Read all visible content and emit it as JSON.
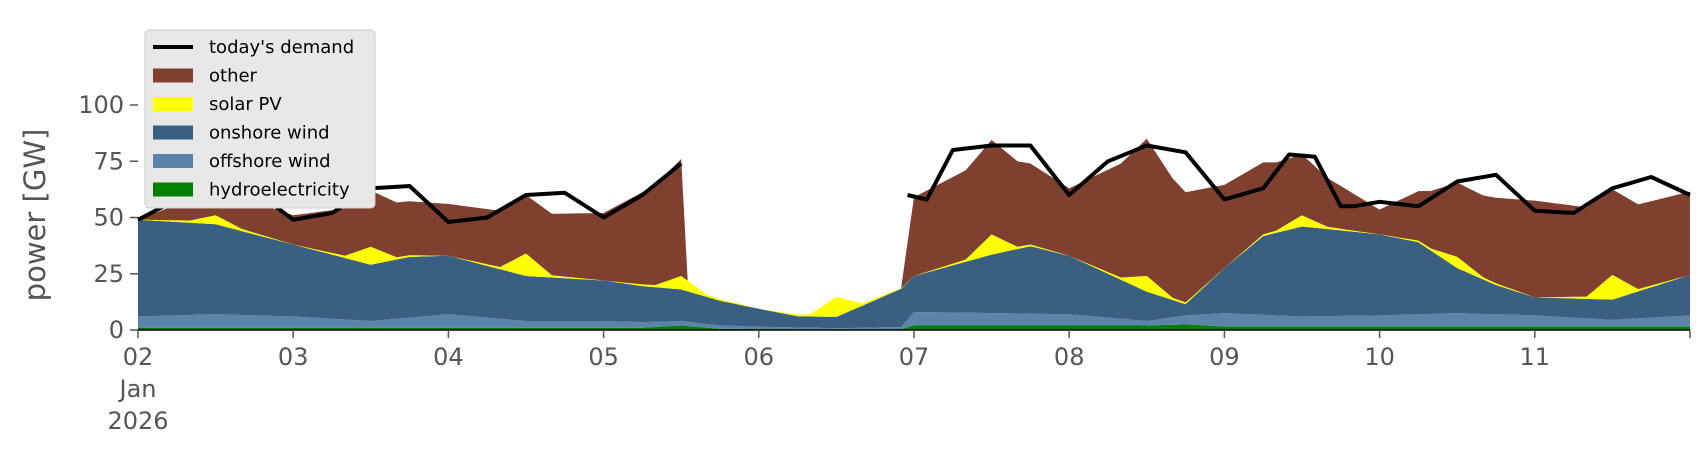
{
  "chart_data": {
    "type": "area",
    "ylabel": "power [GW]",
    "ylim": [
      0,
      120
    ],
    "y_ticks": [
      0,
      25,
      50,
      75,
      100
    ],
    "x_range_days": [
      "2026-01-02",
      "2026-01-12"
    ],
    "x_ticks": [
      {
        "date": "2026-01-02",
        "lines": [
          "02",
          "Jan",
          "2026"
        ]
      },
      {
        "date": "2026-01-03",
        "lines": [
          "03"
        ]
      },
      {
        "date": "2026-01-04",
        "lines": [
          "04"
        ]
      },
      {
        "date": "2026-01-05",
        "lines": [
          "05"
        ]
      },
      {
        "date": "2026-01-06",
        "lines": [
          "06"
        ]
      },
      {
        "date": "2026-01-07",
        "lines": [
          "07"
        ]
      },
      {
        "date": "2026-01-08",
        "lines": [
          "08"
        ]
      },
      {
        "date": "2026-01-09",
        "lines": [
          "09"
        ]
      },
      {
        "date": "2026-01-10",
        "lines": [
          "10"
        ]
      },
      {
        "date": "2026-01-11",
        "lines": [
          "11"
        ]
      }
    ],
    "grid": false,
    "legend_position": "top-left",
    "legend": [
      {
        "label": "today's demand",
        "kind": "line",
        "color": "#000000"
      },
      {
        "label": "other",
        "kind": "patch",
        "color": "#7f4030"
      },
      {
        "label": "solar PV",
        "kind": "patch",
        "color": "#ffff00"
      },
      {
        "label": "onshore wind",
        "kind": "patch",
        "color": "#3a6081"
      },
      {
        "label": "offshore wind",
        "kind": "patch",
        "color": "#5b84a8"
      },
      {
        "label": "hydroelectricity",
        "kind": "patch",
        "color": "#008000"
      }
    ],
    "stack_order": [
      "hydroelectricity",
      "offshore wind",
      "onshore wind",
      "solar PV",
      "other"
    ],
    "series": [
      {
        "name": "hydroelectricity",
        "x": [
          "2026-01-02T00:00",
          "2026-01-05T06:00",
          "2026-01-05T12:00",
          "2026-01-05T18:00",
          "2026-01-06T12:00",
          "2026-01-06T22:00",
          "2026-01-07T00:00",
          "2026-01-07T12:00",
          "2026-01-08T12:00",
          "2026-01-08T18:00",
          "2026-01-09T00:00",
          "2026-01-10T00:00",
          "2026-01-11T00:00",
          "2026-01-12T00:00"
        ],
        "values": [
          1,
          1,
          2,
          0.5,
          0.3,
          0.3,
          2,
          2,
          2,
          2.5,
          1.5,
          1.5,
          1.5,
          1.5
        ]
      },
      {
        "name": "offshore wind",
        "x": [
          "2026-01-02T00:00",
          "2026-01-02T12:00",
          "2026-01-03T00:00",
          "2026-01-03T12:00",
          "2026-01-04T00:00",
          "2026-01-04T12:00",
          "2026-01-05T00:00",
          "2026-01-05T12:00",
          "2026-01-06T00:00",
          "2026-01-06T12:00",
          "2026-01-06T22:00",
          "2026-01-07T00:00",
          "2026-01-07T12:00",
          "2026-01-08T00:00",
          "2026-01-08T12:00",
          "2026-01-09T00:00",
          "2026-01-09T12:00",
          "2026-01-10T00:00",
          "2026-01-10T12:00",
          "2026-01-11T00:00",
          "2026-01-11T12:00",
          "2026-01-12T00:00"
        ],
        "values": [
          5,
          6,
          5,
          3,
          6,
          3,
          3,
          2,
          1,
          0.5,
          1,
          6,
          5.5,
          5,
          2,
          6,
          4.5,
          5,
          6,
          5,
          3,
          5
        ]
      },
      {
        "name": "onshore wind",
        "x": [
          "2026-01-02T00:00",
          "2026-01-02T12:00",
          "2026-01-03T00:00",
          "2026-01-03T12:00",
          "2026-01-03T18:00",
          "2026-01-04T00:00",
          "2026-01-04T12:00",
          "2026-01-05T00:00",
          "2026-01-05T12:00",
          "2026-01-05T18:00",
          "2026-01-06T00:00",
          "2026-01-06T06:00",
          "2026-01-06T12:00",
          "2026-01-06T22:00",
          "2026-01-07T00:00",
          "2026-01-07T12:00",
          "2026-01-07T18:00",
          "2026-01-08T00:00",
          "2026-01-08T12:00",
          "2026-01-08T18:00",
          "2026-01-09T00:00",
          "2026-01-09T06:00",
          "2026-01-09T12:00",
          "2026-01-10T00:00",
          "2026-01-10T06:00",
          "2026-01-10T12:00",
          "2026-01-10T18:00",
          "2026-01-11T00:00",
          "2026-01-11T12:00",
          "2026-01-12T00:00"
        ],
        "values": [
          43,
          40,
          32,
          25,
          27,
          26,
          20,
          18,
          14,
          11,
          8,
          5,
          5,
          17,
          16,
          26,
          30,
          26,
          13,
          5,
          20,
          35,
          40,
          36,
          32,
          20,
          13,
          8,
          9,
          18
        ]
      },
      {
        "name": "solar PV",
        "x": [
          "2026-01-02T00:00",
          "2026-01-02T08:00",
          "2026-01-02T12:00",
          "2026-01-02T16:00",
          "2026-01-03T00:00",
          "2026-01-03T08:00",
          "2026-01-03T12:00",
          "2026-01-03T16:00",
          "2026-01-04T00:00",
          "2026-01-04T08:00",
          "2026-01-04T12:00",
          "2026-01-04T16:00",
          "2026-01-05T00:00",
          "2026-01-05T08:00",
          "2026-01-05T12:00",
          "2026-01-05T16:00",
          "2026-01-06T00:00",
          "2026-01-06T08:00",
          "2026-01-06T12:00",
          "2026-01-06T16:00",
          "2026-01-07T00:00",
          "2026-01-07T08:00",
          "2026-01-07T12:00",
          "2026-01-07T16:00",
          "2026-01-08T00:00",
          "2026-01-08T08:00",
          "2026-01-08T12:00",
          "2026-01-08T16:00",
          "2026-01-09T00:00",
          "2026-01-09T08:00",
          "2026-01-09T12:00",
          "2026-01-09T16:00",
          "2026-01-10T00:00",
          "2026-01-10T08:00",
          "2026-01-10T12:00",
          "2026-01-10T16:00",
          "2026-01-11T00:00",
          "2026-01-11T08:00",
          "2026-01-11T12:00",
          "2026-01-11T16:00",
          "2026-01-12T00:00"
        ],
        "values": [
          0,
          1,
          4,
          1,
          0,
          1,
          8,
          1,
          0,
          1,
          10,
          1,
          0,
          1,
          6,
          1,
          0,
          1,
          9,
          1,
          0,
          1,
          9,
          1,
          0,
          1,
          7,
          1,
          0,
          1,
          5,
          1,
          0,
          1,
          5,
          1,
          0,
          1,
          11,
          1,
          0
        ]
      },
      {
        "name": "other",
        "x": [
          "2026-01-02T00:00",
          "2026-01-02T12:00",
          "2026-01-03T00:00",
          "2026-01-03T12:00",
          "2026-01-04T00:00",
          "2026-01-04T12:00",
          "2026-01-05T00:00",
          "2026-01-05T12:00",
          "2026-01-05T13:00",
          "2026-01-06T22:00",
          "2026-01-07T00:00",
          "2026-01-07T12:00",
          "2026-01-08T00:00",
          "2026-01-08T12:00",
          "2026-01-09T00:00",
          "2026-01-09T12:00",
          "2026-01-10T00:00",
          "2026-01-10T12:00",
          "2026-01-11T00:00",
          "2026-01-11T12:00",
          "2026-01-12T00:00"
        ],
        "values": [
          0,
          14,
          13,
          25,
          23,
          26,
          30,
          52,
          0,
          0,
          35,
          42,
          30,
          61,
          37,
          27,
          11,
          33,
          43,
          38,
          37
        ]
      },
      {
        "name": "today's demand",
        "x": [
          "2026-01-02T00:00",
          "2026-01-02T06:00",
          "2026-01-02T12:00",
          "2026-01-02T18:00",
          "2026-01-03T00:00",
          "2026-01-03T06:00",
          "2026-01-03T12:00",
          "2026-01-03T18:00",
          "2026-01-04T00:00",
          "2026-01-04T06:00",
          "2026-01-04T12:00",
          "2026-01-04T18:00",
          "2026-01-05T00:00",
          "2026-01-05T06:00",
          "2026-01-05T12:00",
          "2026-01-06T23:00",
          "2026-01-07T02:00",
          "2026-01-07T06:00",
          "2026-01-07T12:00",
          "2026-01-07T18:00",
          "2026-01-08T00:00",
          "2026-01-08T06:00",
          "2026-01-08T12:00",
          "2026-01-08T18:00",
          "2026-01-09T00:00",
          "2026-01-09T06:00",
          "2026-01-09T10:00",
          "2026-01-09T14:00",
          "2026-01-09T18:00",
          "2026-01-09T20:00",
          "2026-01-10T00:00",
          "2026-01-10T06:00",
          "2026-01-10T12:00",
          "2026-01-10T18:00",
          "2026-01-11T00:00",
          "2026-01-11T06:00",
          "2026-01-11T12:00",
          "2026-01-11T18:00",
          "2026-01-12T00:00"
        ],
        "values": [
          49,
          58,
          67,
          62,
          49,
          52,
          63,
          64,
          48,
          50,
          60,
          61,
          50,
          60,
          74,
          60,
          58,
          80,
          82,
          82,
          60,
          75,
          82,
          79,
          58,
          63,
          78,
          77,
          55,
          55,
          57,
          55,
          66,
          69,
          53,
          52,
          63,
          68,
          60
        ]
      }
    ]
  }
}
